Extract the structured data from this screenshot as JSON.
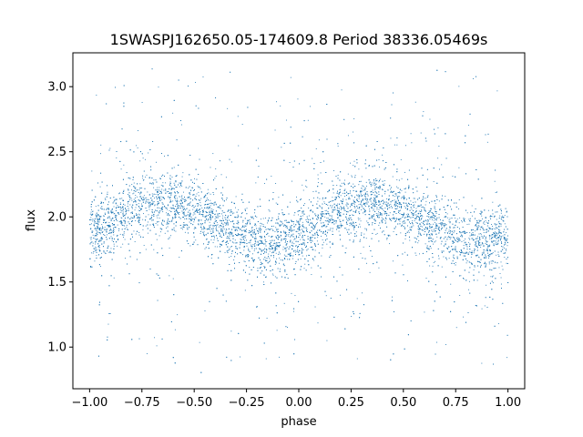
{
  "chart_data": {
    "type": "scatter",
    "title": "1SWASPJ162650.05-174609.8 Period 38336.05469s",
    "xlabel": "phase",
    "ylabel": "flux",
    "xlim": [
      -1.08,
      1.08
    ],
    "ylim": [
      0.68,
      3.26
    ],
    "xticks": [
      -1.0,
      -0.75,
      -0.5,
      -0.25,
      0.0,
      0.25,
      0.5,
      0.75,
      1.0
    ],
    "xtick_labels": [
      "−1.00",
      "−0.75",
      "−0.50",
      "−0.25",
      "0.00",
      "0.25",
      "0.50",
      "0.75",
      "1.00"
    ],
    "yticks": [
      1.0,
      1.5,
      2.0,
      2.5,
      3.0
    ],
    "ytick_labels": [
      "1.0",
      "1.5",
      "2.0",
      "2.5",
      "3.0"
    ],
    "grid": false,
    "legend": "none",
    "marker_color": "#1f77b4",
    "series": [
      {
        "x": [
          -1.0,
          -0.9,
          -0.8,
          -0.7,
          -0.6,
          -0.5,
          -0.4,
          -0.3,
          -0.2,
          -0.1,
          0.0,
          0.1,
          0.2,
          0.3,
          0.4,
          0.5,
          0.6,
          0.7,
          0.8,
          0.9,
          1.0
        ],
        "y": [
          1.88,
          1.96,
          2.06,
          2.12,
          2.1,
          2.04,
          1.97,
          1.89,
          1.81,
          1.8,
          1.84,
          1.95,
          2.06,
          2.12,
          2.1,
          2.04,
          1.97,
          1.89,
          1.82,
          1.8,
          1.84
        ]
      }
    ]
  }
}
